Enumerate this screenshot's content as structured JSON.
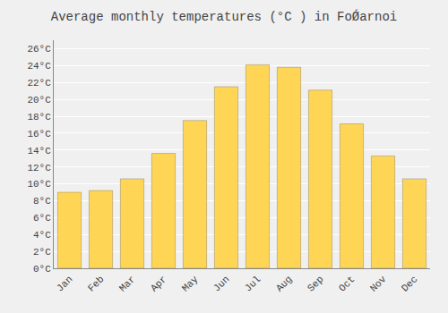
{
  "chart_data": {
    "type": "bar",
    "title": "Average monthly temperatures (°C ) in FoǾarnoi",
    "categories": [
      "Jan",
      "Feb",
      "Mar",
      "Apr",
      "May",
      "Jun",
      "Jul",
      "Aug",
      "Sep",
      "Oct",
      "Nov",
      "Dec"
    ],
    "values": [
      9.0,
      9.2,
      10.6,
      13.6,
      17.5,
      21.5,
      24.1,
      23.8,
      21.1,
      17.1,
      13.3,
      10.6
    ],
    "color": "#FFD555",
    "ylim": [
      0,
      27
    ],
    "yticks": [
      {
        "value": 0,
        "label": "0°C"
      },
      {
        "value": 2,
        "label": "2°C"
      },
      {
        "value": 4,
        "label": "4°C"
      },
      {
        "value": 6,
        "label": "6°C"
      },
      {
        "value": 8,
        "label": "8°C"
      },
      {
        "value": 10,
        "label": "10°C"
      },
      {
        "value": 12,
        "label": "12°C"
      },
      {
        "value": 14,
        "label": "14°C"
      },
      {
        "value": 16,
        "label": "16°C"
      },
      {
        "value": 18,
        "label": "18°C"
      },
      {
        "value": 20,
        "label": "20°C"
      },
      {
        "value": 22,
        "label": "22°C"
      },
      {
        "value": 24,
        "label": "24°C"
      },
      {
        "value": 26,
        "label": "26°C"
      }
    ],
    "grid": true
  }
}
